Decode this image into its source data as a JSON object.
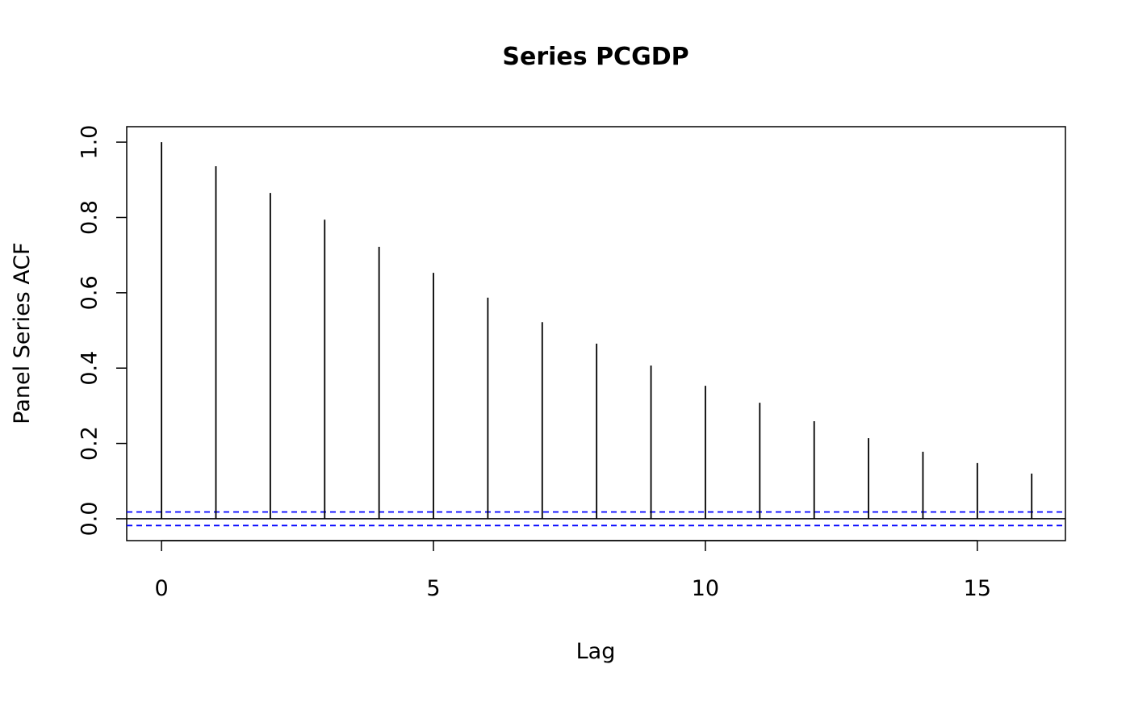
{
  "chart_data": {
    "type": "bar",
    "title": "Series  PCGDP",
    "xlabel": "Lag",
    "ylabel": "Panel Series ACF",
    "x": [
      0,
      1,
      2,
      3,
      4,
      5,
      6,
      7,
      8,
      9,
      10,
      11,
      12,
      13,
      14,
      15,
      16
    ],
    "values": [
      1.0,
      0.936,
      0.865,
      0.794,
      0.722,
      0.653,
      0.587,
      0.522,
      0.465,
      0.407,
      0.353,
      0.308,
      0.259,
      0.214,
      0.178,
      0.148,
      0.12
    ],
    "confidence_bounds": [
      0.018,
      -0.018
    ],
    "xlim": [
      -0.64,
      16.62
    ],
    "ylim": [
      -0.058,
      1.041
    ],
    "xticks": [
      0,
      5,
      10,
      15
    ],
    "yticks": [
      0.0,
      0.2,
      0.4,
      0.6,
      0.8,
      1.0
    ],
    "ytick_labels": [
      "0.0",
      "0.2",
      "0.4",
      "0.6",
      "0.8",
      "1.0"
    ],
    "grid": false,
    "colors": {
      "bars": "#000000",
      "confidence": "#0000ff",
      "zero_line": "#000000"
    }
  }
}
